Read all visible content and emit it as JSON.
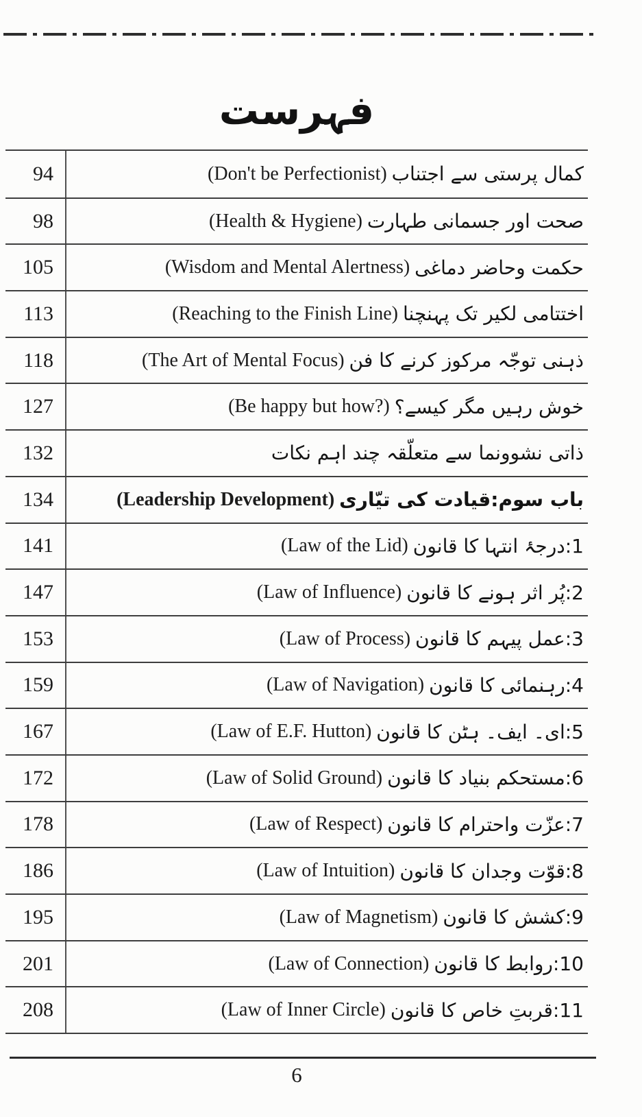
{
  "header": {
    "title": "فہرست"
  },
  "toc": {
    "entries": [
      {
        "page": "94",
        "urdu": "کمال پرستی سے اجتناب",
        "english": "(Don't be Perfectionist)",
        "bold": false
      },
      {
        "page": "98",
        "urdu": "صحت اور جسمانی طہارت",
        "english": "(Health & Hygiene)",
        "bold": false
      },
      {
        "page": "105",
        "urdu": "حکمت وحاضر دماغی",
        "english": "(Wisdom and Mental Alertness)",
        "bold": false
      },
      {
        "page": "113",
        "urdu": "اختتامی لکیر تک پہنچنا",
        "english": "(Reaching to the Finish Line)",
        "bold": false
      },
      {
        "page": "118",
        "urdu": "ذہنی توجّہ مرکوز کرنے کا فن",
        "english": "(The Art of Mental Focus)",
        "bold": false
      },
      {
        "page": "127",
        "urdu": "خوش رہیں مگر کیسے؟",
        "english": "(Be happy but how?)",
        "bold": false
      },
      {
        "page": "132",
        "urdu": "ذاتی نشوونما سے متعلّقہ چند اہم نکات",
        "english": "",
        "bold": false
      },
      {
        "page": "134",
        "urdu": "باب سوم:قیادت کی تیّاری",
        "english": "(Leadership Development)",
        "bold": true
      },
      {
        "page": "141",
        "urdu": "1:درجۂ انتہا کا قانون",
        "english": "(Law of the Lid)",
        "bold": false
      },
      {
        "page": "147",
        "urdu": "2:پُر اثر ہونے کا قانون",
        "english": "(Law of Influence)",
        "bold": false
      },
      {
        "page": "153",
        "urdu": "3:عمل پیہم کا قانون",
        "english": "(Law of Process)",
        "bold": false
      },
      {
        "page": "159",
        "urdu": "4:رہنمائی کا قانون",
        "english": "(Law of Navigation)",
        "bold": false
      },
      {
        "page": "167",
        "urdu": "5:ای۔ ایف۔ ہٹن کا قانون",
        "english": "(Law of E.F. Hutton)",
        "bold": false
      },
      {
        "page": "172",
        "urdu": "6:مستحکم بنیاد کا قانون",
        "english": "(Law of Solid Ground)",
        "bold": false
      },
      {
        "page": "178",
        "urdu": "7:عزّت واحترام کا قانون",
        "english": "(Law of Respect)",
        "bold": false
      },
      {
        "page": "186",
        "urdu": "8:قوّت وجدان کا قانون",
        "english": "(Law of Intuition)",
        "bold": false
      },
      {
        "page": "195",
        "urdu": "9:کشش کا قانون",
        "english": "(Law of Magnetism)",
        "bold": false
      },
      {
        "page": "201",
        "urdu": "10:روابط کا قانون",
        "english": "(Law of Connection)",
        "bold": false
      },
      {
        "page": "208",
        "urdu": "11:قربتِ خاص کا قانون",
        "english": "(Law of Inner Circle)",
        "bold": false
      }
    ]
  },
  "footer": {
    "page_number": "6"
  },
  "colors": {
    "ink": "#1c1c1c",
    "line": "#3e3e3e",
    "background": "#fcfcfb"
  }
}
